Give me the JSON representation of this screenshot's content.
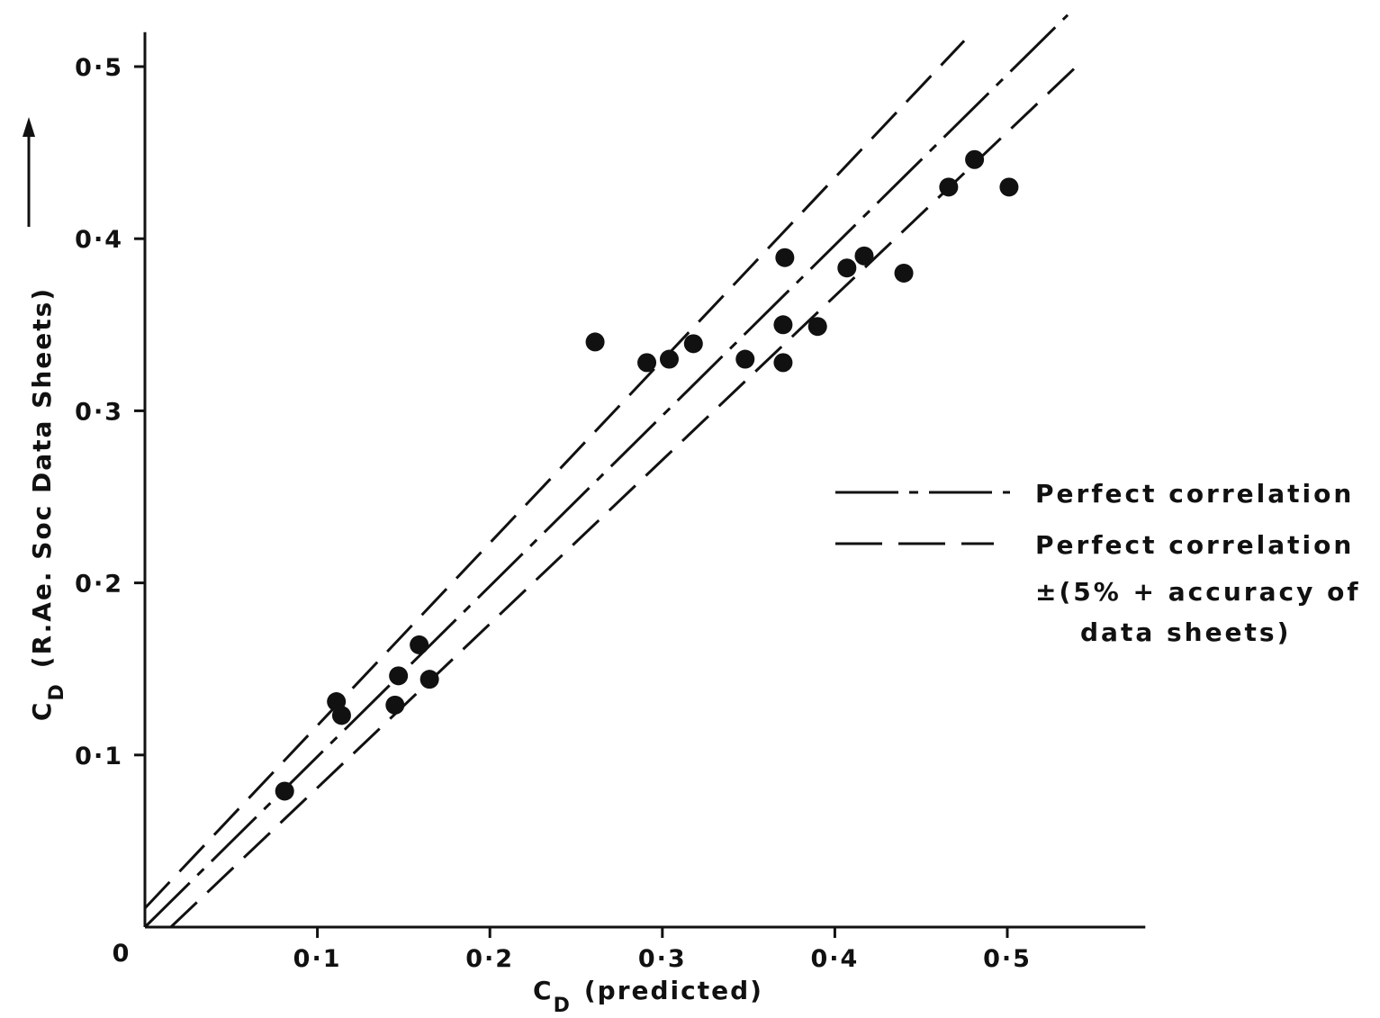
{
  "chart_data": {
    "type": "scatter",
    "title": "",
    "xlabel": "C_D (predicted)",
    "ylabel": "C_D (R.Ae. Soc Data Sheets)",
    "xlabel_parts": {
      "symbol": "C",
      "subscript": "D",
      "rest": "(predicted)"
    },
    "ylabel_parts": {
      "symbol": "C",
      "subscript": "D",
      "rest": "(R.Ae. Soc Data Sheets)"
    },
    "xlim": [
      0,
      0.58
    ],
    "ylim": [
      0,
      0.52
    ],
    "origin_label": "0",
    "x_ticks": [
      {
        "value": 0.1,
        "label": "0·1"
      },
      {
        "value": 0.2,
        "label": "0·2"
      },
      {
        "value": 0.3,
        "label": "0·3"
      },
      {
        "value": 0.4,
        "label": "0·4"
      },
      {
        "value": 0.5,
        "label": "0·5"
      }
    ],
    "y_ticks": [
      {
        "value": 0.1,
        "label": "0·1"
      },
      {
        "value": 0.2,
        "label": "0·2"
      },
      {
        "value": 0.3,
        "label": "0·3"
      },
      {
        "value": 0.4,
        "label": "0·4"
      },
      {
        "value": 0.5,
        "label": "0·5"
      }
    ],
    "grid": false,
    "legend_position": "right",
    "legend": [
      {
        "style": "dash-dot",
        "lines": [
          "Perfect correlation"
        ]
      },
      {
        "style": "dashed",
        "lines": [
          "Perfect correlation",
          "±(5% + accuracy of",
          "data sheets)"
        ]
      }
    ],
    "reference_lines": [
      {
        "name": "Perfect correlation",
        "style": "dash-dot",
        "x": [
          0,
          0.535
        ],
        "y": [
          0,
          0.53
        ]
      },
      {
        "name": "upper bound",
        "style": "dashed",
        "x": [
          0,
          0.475
        ],
        "y": [
          0.011,
          0.515
        ]
      },
      {
        "name": "lower bound",
        "style": "dashed",
        "x": [
          0.015,
          0.54
        ],
        "y": [
          0,
          0.5
        ]
      }
    ],
    "points": [
      {
        "x": 0.081,
        "y": 0.079
      },
      {
        "x": 0.111,
        "y": 0.131
      },
      {
        "x": 0.114,
        "y": 0.123
      },
      {
        "x": 0.145,
        "y": 0.129
      },
      {
        "x": 0.147,
        "y": 0.146
      },
      {
        "x": 0.159,
        "y": 0.164
      },
      {
        "x": 0.165,
        "y": 0.144
      },
      {
        "x": 0.261,
        "y": 0.34
      },
      {
        "x": 0.291,
        "y": 0.328
      },
      {
        "x": 0.304,
        "y": 0.33
      },
      {
        "x": 0.318,
        "y": 0.339
      },
      {
        "x": 0.348,
        "y": 0.33
      },
      {
        "x": 0.37,
        "y": 0.328
      },
      {
        "x": 0.37,
        "y": 0.35
      },
      {
        "x": 0.371,
        "y": 0.389
      },
      {
        "x": 0.39,
        "y": 0.349
      },
      {
        "x": 0.407,
        "y": 0.383
      },
      {
        "x": 0.417,
        "y": 0.39
      },
      {
        "x": 0.44,
        "y": 0.38
      },
      {
        "x": 0.466,
        "y": 0.43
      },
      {
        "x": 0.481,
        "y": 0.446
      },
      {
        "x": 0.501,
        "y": 0.43
      }
    ]
  }
}
